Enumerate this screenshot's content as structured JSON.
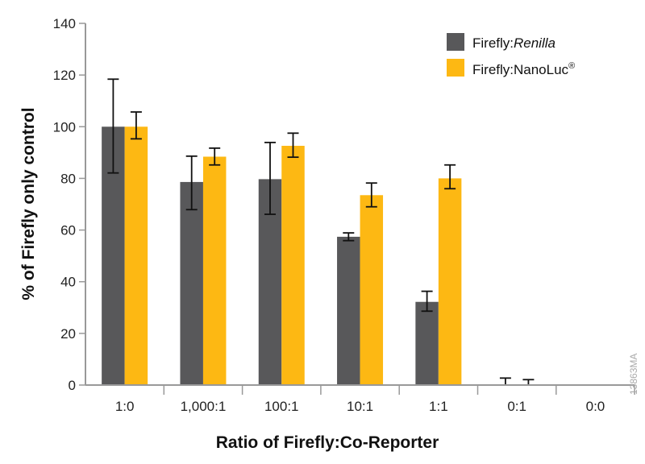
{
  "chart_data": {
    "type": "bar",
    "title": "",
    "xlabel": "Ratio of Firefly:Co-Reporter",
    "ylabel": "% of Firefly only control",
    "ylim": [
      0,
      140
    ],
    "yticks": [
      0,
      20,
      40,
      60,
      80,
      100,
      120,
      140
    ],
    "grid": false,
    "legend_placement": "top-right",
    "categories": [
      "1:0",
      "1,000:1",
      "100:1",
      "10:1",
      "1:1",
      "0:1",
      "0:0"
    ],
    "series": [
      {
        "name": "Firefly:Renilla",
        "name_prefix": "Firefly:",
        "name_italic": "Renilla",
        "color": "#58585a",
        "values": [
          100,
          78.6,
          79.7,
          57.4,
          32.2,
          0,
          null
        ],
        "error_low": [
          82.1,
          67.9,
          66.1,
          55.9,
          28.6,
          0,
          null
        ],
        "error_high": [
          118.4,
          88.6,
          93.9,
          58.9,
          36.3,
          2.7,
          null
        ]
      },
      {
        "name": "Firefly:NanoLuc®",
        "name_prefix": "Firefly:NanoLuc",
        "name_sup": "®",
        "color": "#fdb813",
        "values": [
          100,
          88.4,
          92.6,
          73.5,
          80.0,
          0,
          null
        ],
        "error_low": [
          95.3,
          85.2,
          88.2,
          69.0,
          76.0,
          0,
          null
        ],
        "error_high": [
          105.7,
          91.7,
          97.5,
          78.2,
          85.2,
          2.1,
          null
        ]
      }
    ],
    "figure_code": "13863MA"
  }
}
